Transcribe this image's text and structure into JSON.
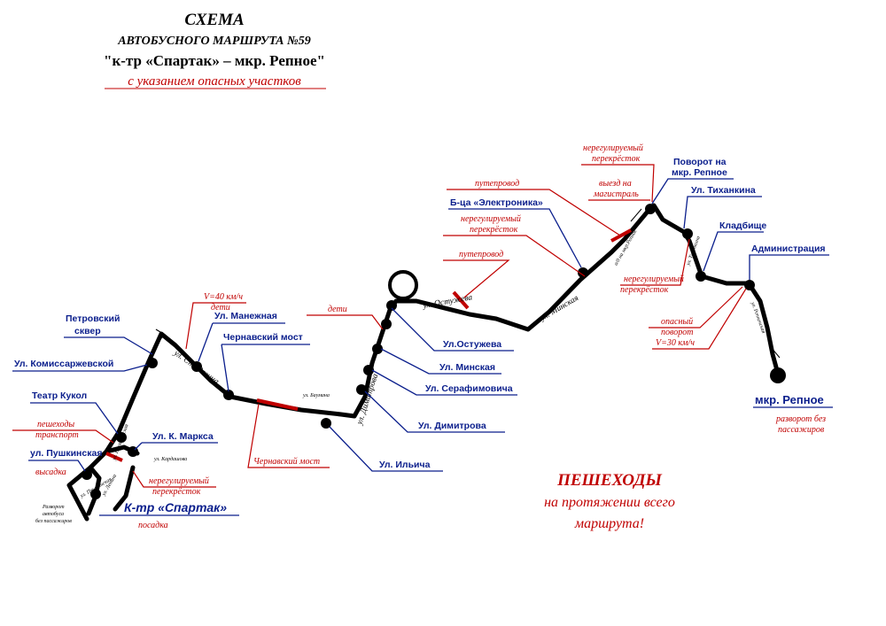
{
  "header": {
    "line1": "СХЕМА",
    "line2": "АВТОБУСНОГО МАРШРУТА №59",
    "line3": "\"к-тр «Спартак» – мкр. Репное\"",
    "subtitle": "с указанием опасных участков"
  },
  "stops": {
    "petrovsky": [
      "Петровский",
      "сквер"
    ],
    "komissarzhevskaya": "Ул. Комиссаржевской",
    "teatr_kukol": "Театр Кукол",
    "pushkinskaya": "ул. Пушкинская",
    "k_marksa": "Ул. К. Маркса",
    "spartak": "К-тр «Спартак»",
    "manezhnaya": "Ул. Манежная",
    "chernavsky_most": "Чернавский мост",
    "ostuzheva": "Ул.Остужева",
    "minskaya": "Ул. Минская",
    "serafimovicha": "Ул. Серафимовича",
    "dimitrova": "Ул. Димитрова",
    "ilyicha": "Ул. Ильича",
    "elektronika": "Б-ца «Электроника»",
    "povorot_repnoe": [
      "Поворот на",
      "мкр. Репное"
    ],
    "tikhankina": "Ул. Тиханкина",
    "kladbishche": "Кладбище",
    "administratsiya": "Администрация",
    "repnoe": "мкр. Репное"
  },
  "hazards": {
    "peshekhody": [
      "пешеходы",
      "транспорт"
    ],
    "vysadka": "высадка",
    "posadka": "посадка",
    "nereg_spartak": [
      "нерегулируемый",
      "перекрёсток"
    ],
    "speed40": "V=40 км/ч",
    "deti1": "дети",
    "chernavsky_most_red": "Чернавский  мост",
    "deti2": "дети",
    "puteprovod1": "путепровод",
    "nereg_mid": [
      "нерегулируемый",
      "перекрёсток"
    ],
    "puteprovod2": "путепровод",
    "nereg_top": [
      "нерегулируемый",
      "перекрёсток"
    ],
    "vyezd": [
      "выезд на",
      "магистраль"
    ],
    "nereg_right": [
      "нерегулируемый",
      "перекрёсток"
    ],
    "opasny": [
      "опасный",
      "поворот"
    ],
    "speed30": "V=30 км/ч",
    "razvorot_repnoe": [
      "разворот без",
      "пассажиров"
    ]
  },
  "notes": {
    "razvorot_left": [
      "Разворот",
      "автобуса",
      "без пассажиров"
    ],
    "pedestrians_title": "ПЕШЕХОДЫ",
    "pedestrians_line2": "на протяжении всего",
    "pedestrians_line3": "маршрута!"
  },
  "streets": {
    "st_razina": "ул. Ст. Разина",
    "bauman": "ул. Баумана",
    "ostuzheva": "ул. Остужева",
    "minskaya": "ул. Минская",
    "dimitrova": "ул. Димитрова",
    "kardashova": "ул. Кардашова",
    "pushkinskaya": "ул. Пушкинская",
    "lenina": "ул. Ленина",
    "plekhanovskaya": "ул. Плехановская",
    "repnoe_road": "а/д на мкр.Репное",
    "tikhankina": "ул. Тиханкина",
    "repnenskaya": "ул. Репненская"
  }
}
